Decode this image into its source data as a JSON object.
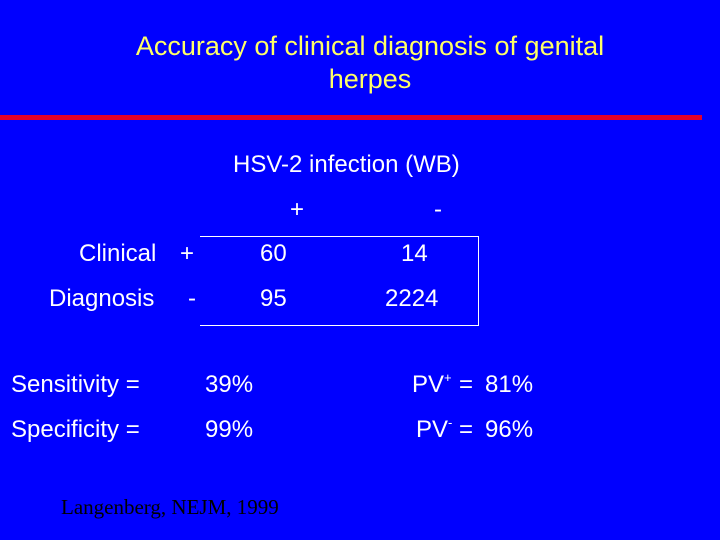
{
  "slide": {
    "title_line1": "Accuracy of clinical diagnosis of genital",
    "title_line2": "herpes",
    "colors": {
      "background": "#0000ff",
      "title": "#ffff66",
      "rule": "#e4002b",
      "text": "#ffffff",
      "citation": "#000000"
    }
  },
  "table": {
    "column_header": "HSV-2 infection (WB)",
    "col_plus": "+",
    "col_minus": "-",
    "row_label_1": "Clinical",
    "row_label_2": "Diagnosis",
    "row_plus": "+",
    "row_minus": "-",
    "cells": [
      [
        "60",
        "14"
      ],
      [
        "95",
        "2224"
      ]
    ]
  },
  "stats": {
    "sensitivity_label": "Sensitivity =",
    "sensitivity_value": "39%",
    "specificity_label": "Specificity =",
    "specificity_value": "99%",
    "pv_plus_base": "PV",
    "pv_plus_sup": "+",
    "pv_plus_eq": "=",
    "pv_plus_value": "81%",
    "pv_minus_base": "PV",
    "pv_minus_sup": "-",
    "pv_minus_eq": "=",
    "pv_minus_value": "96%"
  },
  "citation": "Langenberg, NEJM, 1999"
}
